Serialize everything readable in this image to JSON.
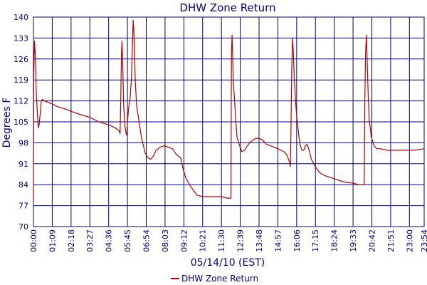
{
  "chart_data": {
    "type": "line",
    "title": "DHW Zone Return",
    "xlabel": "05/14/10 (EST)",
    "ylabel": "Degrees F",
    "ylim": [
      70,
      140
    ],
    "xlim_minutes": [
      0,
      1434
    ],
    "yticks": [
      70,
      77,
      84,
      91,
      98,
      105,
      112,
      119,
      126,
      133,
      140
    ],
    "xticks": [
      "00:00",
      "01:09",
      "02:18",
      "03:27",
      "04:36",
      "05:45",
      "06:54",
      "08:03",
      "09:12",
      "10:21",
      "11:30",
      "12:39",
      "13:48",
      "14:57",
      "16:06",
      "17:15",
      "18:24",
      "19:33",
      "20:42",
      "21:51",
      "23:00",
      "23:54"
    ],
    "grid": true,
    "legend_position": "bottom-center",
    "colors": {
      "series": "#b00000",
      "grid": "#000080",
      "text": "#000080",
      "plot_bg": "#ffffff"
    },
    "series": [
      {
        "name": "DHW Zone Return",
        "points": [
          [
            "00:00",
            78
          ],
          [
            "00:01",
            120
          ],
          [
            "00:04",
            132
          ],
          [
            "00:07",
            127
          ],
          [
            "00:10",
            116
          ],
          [
            "00:14",
            108
          ],
          [
            "00:18",
            103
          ],
          [
            "00:21",
            104
          ],
          [
            "00:25",
            108
          ],
          [
            "00:29",
            112
          ],
          [
            "00:33",
            112.5
          ],
          [
            "00:40",
            112
          ],
          [
            "00:55",
            111.5
          ],
          [
            "01:09",
            111
          ],
          [
            "01:30",
            110
          ],
          [
            "01:50",
            109.5
          ],
          [
            "02:18",
            108.5
          ],
          [
            "02:50",
            107.5
          ],
          [
            "03:27",
            106.5
          ],
          [
            "04:00",
            105
          ],
          [
            "04:36",
            104
          ],
          [
            "05:00",
            103
          ],
          [
            "05:15",
            102
          ],
          [
            "05:18",
            101
          ],
          [
            "05:20",
            110
          ],
          [
            "05:23",
            128
          ],
          [
            "05:25",
            132
          ],
          [
            "05:28",
            123
          ],
          [
            "05:31",
            111
          ],
          [
            "05:35",
            104
          ],
          [
            "05:40",
            101
          ],
          [
            "05:43",
            100.5
          ],
          [
            "05:45",
            105
          ],
          [
            "05:50",
            110
          ],
          [
            "05:55",
            113
          ],
          [
            "06:00",
            120
          ],
          [
            "06:04",
            133
          ],
          [
            "06:06",
            139
          ],
          [
            "06:08",
            136
          ],
          [
            "06:11",
            128
          ],
          [
            "06:14",
            118
          ],
          [
            "06:19",
            110
          ],
          [
            "06:26",
            106
          ],
          [
            "06:36",
            100
          ],
          [
            "06:50",
            94.5
          ],
          [
            "07:00",
            93
          ],
          [
            "07:10",
            92.5
          ],
          [
            "07:20",
            93.5
          ],
          [
            "07:30",
            95.5
          ],
          [
            "07:45",
            96.5
          ],
          [
            "08:00",
            97
          ],
          [
            "08:15",
            96.5
          ],
          [
            "08:30",
            96
          ],
          [
            "08:45",
            94
          ],
          [
            "09:00",
            93
          ],
          [
            "09:10",
            89
          ],
          [
            "09:20",
            86
          ],
          [
            "09:40",
            83
          ],
          [
            "10:00",
            80.5
          ],
          [
            "10:21",
            80
          ],
          [
            "10:50",
            80
          ],
          [
            "11:30",
            80
          ],
          [
            "11:50",
            79.5
          ],
          [
            "12:05",
            79.5
          ],
          [
            "12:06",
            110
          ],
          [
            "12:07",
            128
          ],
          [
            "12:09",
            134
          ],
          [
            "12:11",
            127
          ],
          [
            "12:14",
            117
          ],
          [
            "12:18",
            113
          ],
          [
            "12:22",
            106
          ],
          [
            "12:27",
            100
          ],
          [
            "12:35",
            97.5
          ],
          [
            "12:45",
            95
          ],
          [
            "12:55",
            95.5
          ],
          [
            "13:05",
            97
          ],
          [
            "13:20",
            98.5
          ],
          [
            "13:35",
            99.5
          ],
          [
            "13:48",
            99.5
          ],
          [
            "14:00",
            99
          ],
          [
            "14:15",
            97.5
          ],
          [
            "14:30",
            97
          ],
          [
            "14:57",
            96
          ],
          [
            "15:20",
            95
          ],
          [
            "15:30",
            94
          ],
          [
            "15:40",
            91.5
          ],
          [
            "15:43",
            90
          ],
          [
            "15:45",
            101
          ],
          [
            "15:48",
            122
          ],
          [
            "15:51",
            133
          ],
          [
            "15:54",
            128
          ],
          [
            "15:57",
            120
          ],
          [
            "16:02",
            112
          ],
          [
            "16:06",
            107
          ],
          [
            "16:12",
            102
          ],
          [
            "16:18",
            97.5
          ],
          [
            "16:26",
            95.5
          ],
          [
            "16:32",
            95.5
          ],
          [
            "16:38",
            97
          ],
          [
            "16:44",
            97.5
          ],
          [
            "16:52",
            95.5
          ],
          [
            "17:00",
            92.5
          ],
          [
            "17:15",
            90
          ],
          [
            "17:30",
            88
          ],
          [
            "17:50",
            87
          ],
          [
            "18:24",
            86
          ],
          [
            "18:55",
            85
          ],
          [
            "19:33",
            84.5
          ],
          [
            "19:55",
            84
          ],
          [
            "20:10",
            84
          ],
          [
            "20:14",
            84
          ],
          [
            "20:16",
            110
          ],
          [
            "20:19",
            128
          ],
          [
            "20:22",
            134
          ],
          [
            "20:25",
            125
          ],
          [
            "20:28",
            116
          ],
          [
            "20:32",
            106
          ],
          [
            "20:40",
            100
          ],
          [
            "20:50",
            97
          ],
          [
            "21:00",
            96
          ],
          [
            "21:15",
            96
          ],
          [
            "21:40",
            95.5
          ],
          [
            "22:00",
            95.5
          ],
          [
            "22:20",
            95.5
          ],
          [
            "22:40",
            95.5
          ],
          [
            "23:00",
            95.5
          ],
          [
            "23:20",
            95.5
          ],
          [
            "23:54",
            96
          ]
        ]
      }
    ]
  }
}
